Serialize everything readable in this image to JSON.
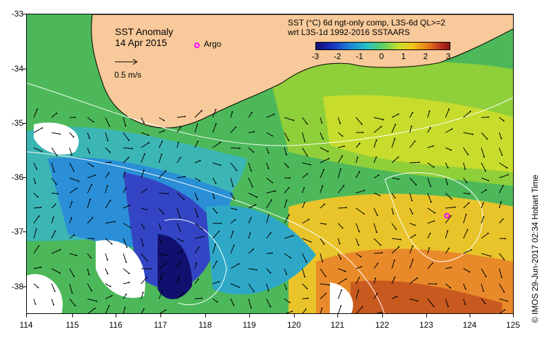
{
  "map": {
    "title_line1": "SST Anomaly",
    "title_line2": "14 Apr 2015",
    "vector_scale_label": "0.5 m/s",
    "argo_label": "Argo",
    "colorbar_title_line1": "SST (°C) 6d ngt-only comp, L3S-6d QL>=2",
    "colorbar_title_line2": "wrt L3S-1d 1992-2016 SSTAARS",
    "colorbar_ticks": [
      "-3",
      "-2",
      "-1",
      "0",
      "1",
      "2",
      "3"
    ],
    "lat_ticks": [
      "-33",
      "-34",
      "-35",
      "-36",
      "-37",
      "-38"
    ],
    "lon_ticks": [
      "114",
      "115",
      "116",
      "117",
      "118",
      "119",
      "120",
      "121",
      "122",
      "123",
      "124",
      "125"
    ],
    "credit": "©  IMOS 29-Jun-2017 02:34 Hobart Time",
    "colors": {
      "land": "#f8c99a",
      "argo_marker": "#ff00ff",
      "contour": "#ffffff",
      "vector": "#000000"
    }
  }
}
